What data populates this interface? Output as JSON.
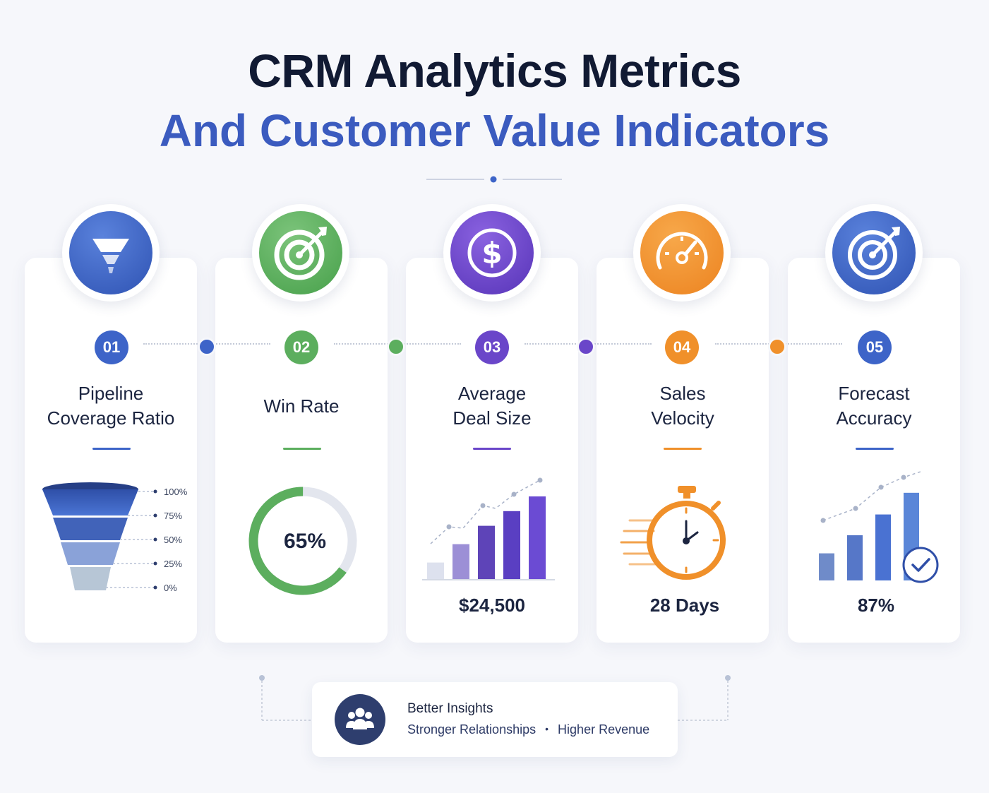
{
  "header": {
    "title": "CRM Analytics Metrics",
    "subtitle": "And Customer Value Indicators"
  },
  "colors": {
    "blue": "#3d64c8",
    "green": "#5cae5e",
    "purple": "#6a46c9",
    "orange": "#f0902a",
    "navy": "#2e3e6e"
  },
  "metrics": [
    {
      "number": "01",
      "title_line1": "Pipeline",
      "title_line2": "Coverage Ratio",
      "icon": "funnel-icon",
      "value": ""
    },
    {
      "number": "02",
      "title_line1": "Win Rate",
      "title_line2": "",
      "icon": "target-icon",
      "value": "65%"
    },
    {
      "number": "03",
      "title_line1": "Average",
      "title_line2": "Deal Size",
      "icon": "dollar-icon",
      "value": "$24,500"
    },
    {
      "number": "04",
      "title_line1": "Sales",
      "title_line2": "Velocity",
      "icon": "speedometer-icon",
      "value": "28 Days"
    },
    {
      "number": "05",
      "title_line1": "Forecast",
      "title_line2": "Accuracy",
      "icon": "target-icon",
      "value": "87%"
    }
  ],
  "funnel_labels": [
    "100%",
    "75%",
    "50%",
    "25%",
    "0%"
  ],
  "win_rate_fraction": 0.65,
  "deal_bars": [
    0.18,
    0.38,
    0.58,
    0.74,
    0.9
  ],
  "forecast_bars": [
    0.3,
    0.5,
    0.73,
    0.97
  ],
  "bottom": {
    "title": "Better Insights",
    "item1": "Stronger Relationships",
    "separator": "•",
    "item2": "Higher Revenue"
  }
}
